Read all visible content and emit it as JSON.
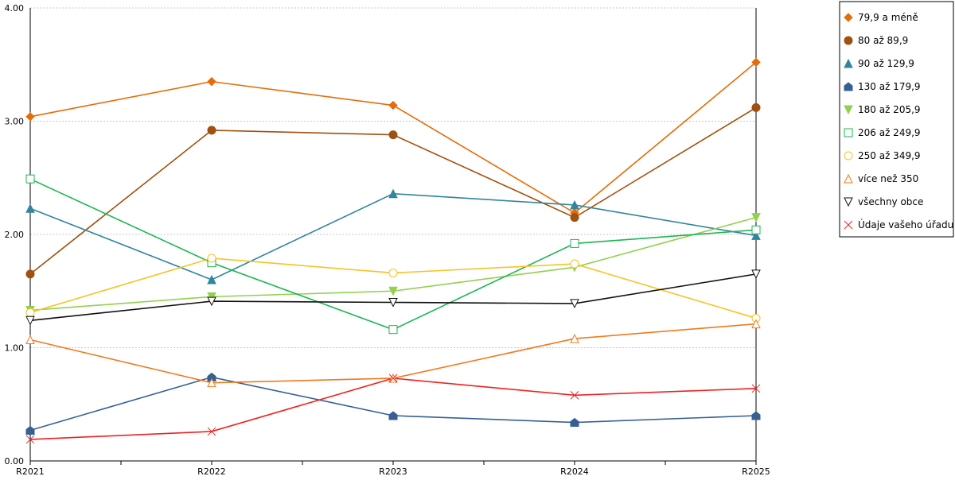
{
  "chart_data": {
    "type": "line",
    "title": "",
    "xlabel": "",
    "ylabel": "",
    "categories": [
      "R2021",
      "R2022",
      "R2023",
      "R2024",
      "R2025"
    ],
    "ylim": [
      0,
      4
    ],
    "y_ticks": [
      "0.00",
      "1.00",
      "2.00",
      "3.00",
      "4.00"
    ],
    "grid": true,
    "legend_position": "top-right",
    "series": [
      {
        "name": "79,9 a méně",
        "color": "#e46c0a",
        "marker": "diamond",
        "values": [
          3.04,
          3.35,
          3.14,
          2.19,
          3.52
        ]
      },
      {
        "name": "80 až 89,9",
        "color": "#a0500f",
        "marker": "circle-filled",
        "values": [
          1.65,
          2.92,
          2.88,
          2.15,
          3.12
        ]
      },
      {
        "name": "90 až 129,9",
        "color": "#31859c",
        "marker": "triangle-up-filled",
        "values": [
          2.23,
          1.6,
          2.36,
          2.26,
          1.99
        ]
      },
      {
        "name": "130 až 179,9",
        "color": "#366092",
        "marker": "pentagon-filled",
        "values": [
          0.27,
          0.74,
          0.4,
          0.34,
          0.4
        ]
      },
      {
        "name": "180 až 205,9",
        "color": "#92d050",
        "marker": "triangle-down-filled",
        "values": [
          1.33,
          1.45,
          1.5,
          1.71,
          2.15
        ]
      },
      {
        "name": "206 až 249,9",
        "color": "#1eb454",
        "marker": "square-open",
        "values": [
          2.49,
          1.75,
          1.16,
          1.92,
          2.04
        ]
      },
      {
        "name": "250 až 349,9",
        "color": "#f7c325",
        "marker": "circle-open",
        "values": [
          1.31,
          1.79,
          1.66,
          1.74,
          1.26
        ]
      },
      {
        "name": "více než 350",
        "color": "#f07a1d",
        "marker": "triangle-up-open",
        "values": [
          1.07,
          0.69,
          0.73,
          1.08,
          1.21
        ]
      },
      {
        "name": "všechny obce",
        "color": "#111111",
        "marker": "triangle-down-open",
        "values": [
          1.24,
          1.41,
          1.4,
          1.39,
          1.65
        ]
      },
      {
        "name": "Údaje vašeho úřadu",
        "color": "#ee2222",
        "marker": "x",
        "values": [
          0.19,
          0.26,
          0.73,
          0.58,
          0.64
        ]
      }
    ]
  }
}
